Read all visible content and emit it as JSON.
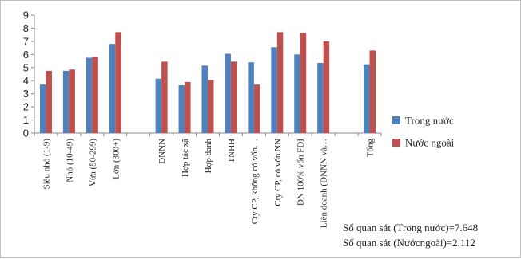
{
  "chart_data": {
    "type": "bar",
    "ylim": [
      0,
      9
    ],
    "yticks": [
      0,
      1,
      2,
      3,
      4,
      5,
      6,
      7,
      8,
      9
    ],
    "grid": false,
    "legend_position": "right",
    "categories": [
      "Siêu nhỏ (1-9)",
      "Nhỏ (10-49)",
      "Vừa (50-299)",
      "Lớn (300+)",
      "",
      "DNNN",
      "Hợp tác xã",
      "Hợp danh",
      "TNHH",
      "Cty CP, không có vốn…",
      "Cty CP, có vốn NN",
      "DN 100% vốn FDI",
      "Liên doanh (DNNN và…",
      "",
      "Tổng"
    ],
    "series": [
      {
        "name": "Trong nước",
        "color": "#4F81BD",
        "values": [
          3.7,
          4.75,
          5.75,
          6.8,
          null,
          4.15,
          3.65,
          5.15,
          6.05,
          5.4,
          6.55,
          6.0,
          5.35,
          null,
          5.25
        ]
      },
      {
        "name": "Nước ngoài",
        "color": "#C0504D",
        "values": [
          4.75,
          4.85,
          5.8,
          7.7,
          null,
          5.45,
          3.9,
          4.05,
          5.45,
          3.7,
          7.7,
          7.65,
          7.0,
          null,
          6.3
        ]
      }
    ]
  },
  "notes": {
    "obs_domestic": "Số quan sát (Trong nước)=7.648",
    "obs_foreign": "Số quan sát (Nướcngoài)=2.112"
  }
}
